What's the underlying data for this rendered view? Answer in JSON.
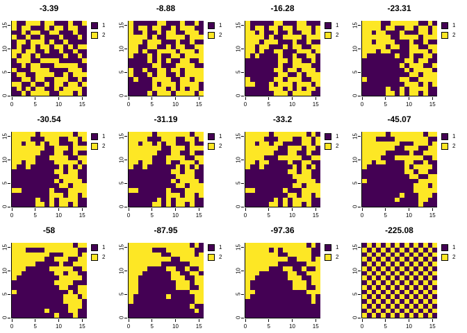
{
  "chart_data": {
    "type": "heatmap",
    "description": "Grid of twelve 16x16 binary lattice heatmaps, each titled with an energy value",
    "grid_size": 16,
    "axis_range": [
      0,
      16
    ],
    "x_ticks": [
      0,
      5,
      10,
      15
    ],
    "y_ticks": [
      0,
      5,
      10,
      15
    ],
    "colors": {
      "1": "#440154",
      "2": "#FDE725"
    },
    "legend": [
      {
        "label": "1",
        "color": "#440154"
      },
      {
        "label": "2",
        "color": "#FDE725"
      }
    ],
    "panels": [
      {
        "title": "-3.39",
        "rows": [
          "2112221221112112",
          "2122111212212211",
          "1121221122111211",
          "2112112111211121",
          "1221222121121111",
          "1211212212212122",
          "2212211211211211",
          "2122121111121121",
          "1222112222111112",
          "1121221112222211",
          "2111222211112221",
          "1221122221121222",
          "1122122112221121",
          "2211211212212212",
          "1212122112122221",
          "1121222211222121"
        ]
      },
      {
        "title": "-8.88",
        "rows": [
          "2111112211121121",
          "2122122112122211",
          "2112112122112221",
          "2222121122221222",
          "2221222111211211",
          "2211221121221122",
          "2212112222122212",
          "2111212112212222",
          "1111212121122112",
          "1111122111222211",
          "2112112212212222",
          "2111212211212222",
          "1211122221122122",
          "1111121222122221",
          "1111122212121221",
          "1111212221222212"
        ]
      },
      {
        "title": "-16.28",
        "rows": [
          "2111112211122111",
          "2122122122122212",
          "2212112112112212",
          "2222121122221222",
          "2221222111211211",
          "2212211121221122",
          "2212112211122212",
          "2121111211211221",
          "1111111221221121",
          "1111111211222211",
          "1111112212212221",
          "1111111221121222",
          "2111112212221122",
          "2211121222122212",
          "1111122212121221",
          "1111112221222211"
        ]
      },
      {
        "title": "-23.31",
        "rows": [
          "2222112222221121",
          "2222122112212212",
          "2212211121112212",
          "2222221122221222",
          "2212222111211211",
          "2222212211221122",
          "2221221111222212",
          "2111111211211221",
          "1111111112212211",
          "1111111121222112",
          "1111111112122221",
          "1111111111221222",
          "2111111122112222",
          "1111111112221212",
          "1111121121222211",
          "1111122121221211"
        ]
      },
      {
        "title": "-30.54",
        "rows": [
          "2222212222222122",
          "2222111222112212",
          "2212212122111211",
          "2222222112221222",
          "2222221112211211",
          "2222211122221122",
          "2212211112222212",
          "2112111111212121",
          "1111111112212211",
          "1111111111222211",
          "1111111112122221",
          "1111111111221222",
          "2211111121112222",
          "1111111122212212",
          "1111121121222211",
          "1111122121221211"
        ]
      },
      {
        "title": "-31.19",
        "rows": [
          "2222212222222122",
          "2222111222112212",
          "2212212122111211",
          "2222222112221222",
          "2222221112211211",
          "2222211122221122",
          "2212211121122212",
          "2112111111212121",
          "1111111112212211",
          "1111111111222211",
          "1111111112122221",
          "1111111111221222",
          "2211111121112222",
          "1111111122212212",
          "1111112121222211",
          "1111122121221211"
        ]
      },
      {
        "title": "-33.2",
        "rows": [
          "2222212222222121",
          "2222111222112212",
          "2212212211112212",
          "2222222112221221",
          "2222221112211211",
          "2222111222221122",
          "2212211112112211",
          "2112111111212121",
          "1111111112212211",
          "1111111111222211",
          "1111111111122221",
          "1111111111221222",
          "2211111121112222",
          "1111111112212212",
          "1111112121222211",
          "1111122121221211"
        ]
      },
      {
        "title": "-45.07",
        "rows": [
          "2222212222222122",
          "2221111222222211",
          "2222222211122212",
          "2222222112221122",
          "2222211111211222",
          "2222111222222112",
          "2212211112211211",
          "2111111112122221",
          "1111111112212211",
          "1111111111221122",
          "2111111111112222",
          "1111111111122212",
          "1111111111122222",
          "1111111121112221",
          "1111111211112211",
          "1111111111112111"
        ]
      },
      {
        "title": "-58",
        "rows": [
          "2222222222222122",
          "2221111222222211",
          "2222222211122212",
          "2222222112221122",
          "2222211111211222",
          "2221111122222112",
          "2211111112212211",
          "2111111111222221",
          "1111111112222111",
          "1111111111221122",
          "2111111111112122",
          "1111111111122212",
          "1111111111122221",
          "1111111111112221",
          "1111111211112211",
          "1111111112111211"
        ]
      },
      {
        "title": "-87.95",
        "rows": [
          "2222222222222121",
          "2222211122222211",
          "2222222112222212",
          "2222222221122222",
          "2222222111111222",
          "2222111122112112",
          "2221111112211221",
          "2211111112221122",
          "2211111111222122",
          "2211111111222112",
          "2211111111111222",
          "2111111121111122",
          "2111111111111122",
          "1111111111111211",
          "1111111111111121",
          "1111111111111111"
        ]
      },
      {
        "title": "-97.36",
        "rows": [
          "2222222222222121",
          "2222212122222211",
          "2222222112222211",
          "2222222221122212",
          "2222222111111222",
          "2222211122112112",
          "2221111112211222",
          "2211111112221122",
          "2111111111222122",
          "2111111111222112",
          "2211111111111222",
          "2111111111111121",
          "1111111111111121",
          "1111111111111111",
          "1111111111111111",
          "1111111111111111"
        ]
      },
      {
        "title": "-225.08",
        "rows": [
          "1212121212121212",
          "2121212121212121",
          "1212121212121212",
          "2121212121212121",
          "1212121212121212",
          "2121212121212121",
          "1212121212121212",
          "2121212121212121",
          "1212121212121212",
          "2121212121212121",
          "1212121212121212",
          "2121212121212121",
          "1212121212121212",
          "2121212121212121",
          "1212121212121212",
          "2121212121212121"
        ]
      }
    ]
  }
}
